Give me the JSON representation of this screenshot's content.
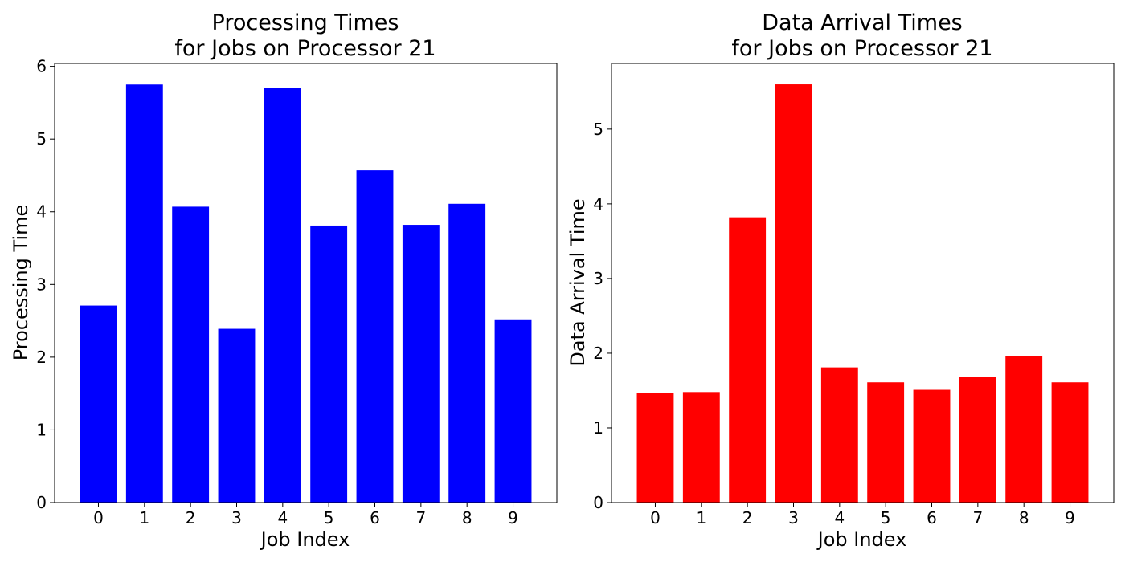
{
  "chart_data": [
    {
      "type": "bar",
      "title_line1": "Processing Times",
      "title_line2": "for Jobs on Processor 21",
      "xlabel": "Job Index",
      "ylabel": "Processing Time",
      "categories": [
        "0",
        "1",
        "2",
        "3",
        "4",
        "5",
        "6",
        "7",
        "8",
        "9"
      ],
      "values": [
        2.71,
        5.75,
        4.07,
        2.39,
        5.7,
        3.81,
        4.57,
        3.82,
        4.11,
        2.52
      ],
      "yticks": [
        0,
        1,
        2,
        3,
        4,
        5,
        6
      ],
      "ylim": [
        0,
        6.04
      ],
      "color": "#0000ff",
      "grid": false,
      "legend": "none"
    },
    {
      "type": "bar",
      "title_line1": "Data Arrival Times",
      "title_line2": "for Jobs on Processor 21",
      "xlabel": "Job Index",
      "ylabel": "Data Arrival Time",
      "categories": [
        "0",
        "1",
        "2",
        "3",
        "4",
        "5",
        "6",
        "7",
        "8",
        "9"
      ],
      "values": [
        1.47,
        1.48,
        3.82,
        5.6,
        1.81,
        1.61,
        1.51,
        1.68,
        1.96,
        1.61
      ],
      "yticks": [
        0,
        1,
        2,
        3,
        4,
        5
      ],
      "ylim": [
        0,
        5.88
      ],
      "color": "#ff0000",
      "grid": false,
      "legend": "none"
    }
  ]
}
